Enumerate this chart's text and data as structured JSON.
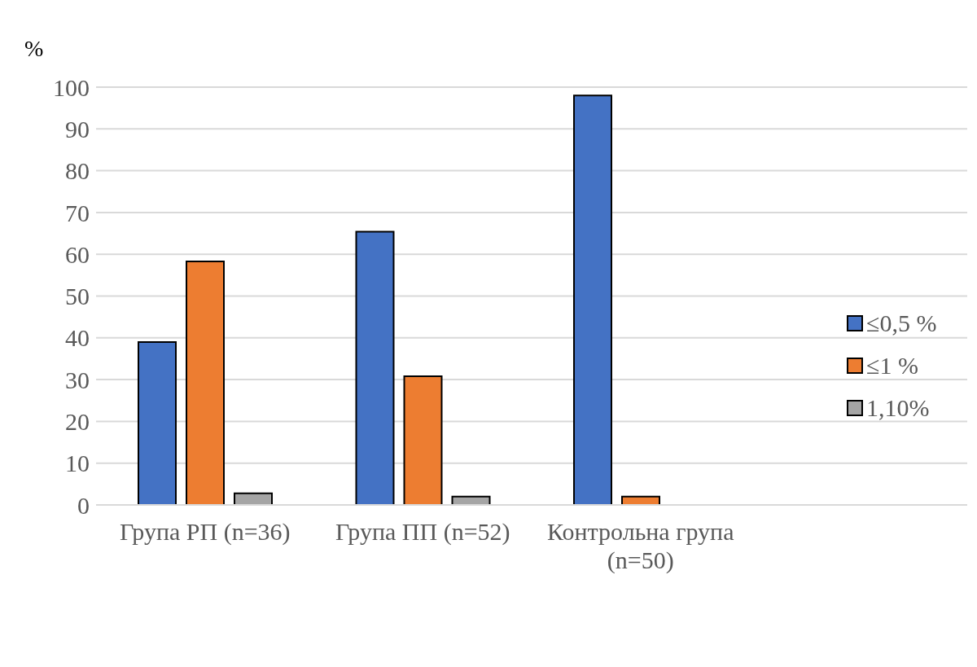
{
  "chart_data": {
    "type": "bar",
    "ylabel": "%",
    "categories": [
      "Група РП (n=36)",
      "Група ПП (n=52)",
      "Контрольна група (n=50)",
      null
    ],
    "series": [
      {
        "name": "≤0,5 %",
        "color": "#4472c4",
        "values": [
          39,
          65.4,
          98,
          null
        ]
      },
      {
        "name": "≤1 %",
        "color": "#ed7d31",
        "values": [
          58.3,
          30.8,
          2,
          null
        ]
      },
      {
        "name": "1,10%",
        "color": "#a5a5a5",
        "values": [
          2.8,
          2,
          null,
          null
        ]
      }
    ],
    "ylim": [
      0,
      100
    ],
    "yticks": [
      0,
      10,
      20,
      30,
      40,
      50,
      60,
      70,
      80,
      90,
      100
    ],
    "grid": "y",
    "legend": "right"
  }
}
